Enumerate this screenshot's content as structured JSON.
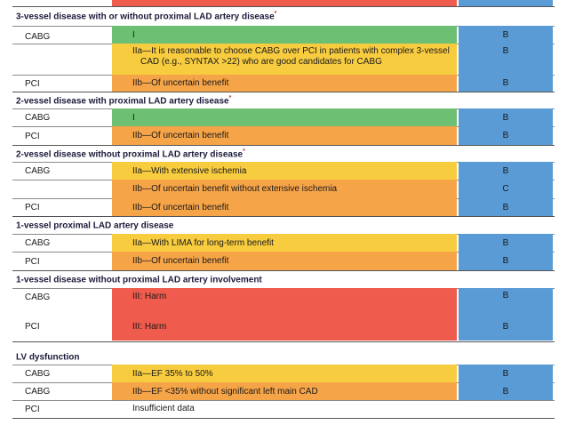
{
  "colors": {
    "green": "#6dbf73",
    "yellow": "#f8cc3f",
    "orange": "#f6a448",
    "red": "#ef5b4c",
    "blue": "#5b9bd5"
  },
  "sections": [
    {
      "title": "3-vessel disease with or without proximal LAD artery disease",
      "footnote_marker": "*",
      "rows": [
        {
          "strategy": "CABG",
          "cor": "I",
          "cor_color": "green",
          "loe": "B"
        },
        {
          "strategy": "",
          "cor_line1": "IIa—It is reasonable to choose CABG over PCI in patients with complex 3-vessel",
          "cor_line2": "CAD (e.g., SYNTAX >22) who are good candidates for CABG",
          "cor_color": "yellow",
          "loe": "B"
        },
        {
          "strategy": "PCI",
          "cor": "IIb—Of uncertain benefit",
          "cor_color": "orange",
          "loe": "B"
        }
      ]
    },
    {
      "title": "2-vessel disease with proximal LAD artery disease",
      "footnote_marker": "*",
      "rows": [
        {
          "strategy": "CABG",
          "cor": "I",
          "cor_color": "green",
          "loe": "B"
        },
        {
          "strategy": "PCI",
          "cor": "IIb—Of uncertain benefit",
          "cor_color": "orange",
          "loe": "B"
        }
      ]
    },
    {
      "title": "2-vessel disease without proximal LAD artery disease",
      "footnote_marker": "*",
      "rows": [
        {
          "strategy": "CABG",
          "cor": "IIa—With extensive ischemia",
          "cor_color": "yellow",
          "loe": "B"
        },
        {
          "strategy": "",
          "cor": "IIb—Of uncertain benefit without extensive ischemia",
          "cor_color": "orange",
          "loe": "C"
        },
        {
          "strategy": "PCI",
          "cor": "IIb—Of uncertain benefit",
          "cor_color": "orange",
          "loe": "B"
        }
      ]
    },
    {
      "title": "1-vessel proximal LAD artery disease",
      "footnote_marker": "",
      "rows": [
        {
          "strategy": "CABG",
          "cor": "IIa—With LIMA for long-term benefit",
          "cor_color": "yellow",
          "loe": "B"
        },
        {
          "strategy": "PCI",
          "cor": "IIb—Of uncertain benefit",
          "cor_color": "orange",
          "loe": "B"
        }
      ]
    },
    {
      "title": "1-vessel disease without proximal LAD artery involvement",
      "footnote_marker": "",
      "rows": [
        {
          "strategy": "CABG",
          "cor": "III: Harm",
          "cor_color": "red",
          "loe": "B"
        },
        {
          "strategy": "PCI",
          "cor": "III: Harm",
          "cor_color": "red",
          "loe": "B"
        }
      ]
    },
    {
      "title": "LV dysfunction",
      "footnote_marker": "",
      "rows": [
        {
          "strategy": "CABG",
          "cor": "IIa—EF 35% to 50%",
          "cor_color": "yellow",
          "loe": "B"
        },
        {
          "strategy": "CABG",
          "cor": "IIb—EF <35% without significant left main CAD",
          "cor_color": "orange",
          "loe": "B"
        },
        {
          "strategy": "PCI",
          "cor": "Insufficient data",
          "cor_color": "",
          "loe": ""
        }
      ]
    }
  ]
}
